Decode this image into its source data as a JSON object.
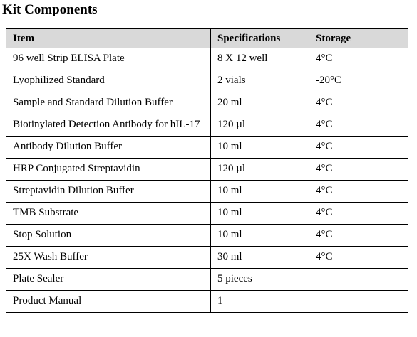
{
  "title": "Kit Components",
  "table": {
    "header": [
      "Item",
      "Specifications",
      "Storage"
    ],
    "rows": [
      [
        "96 well Strip ELISA Plate",
        "8 X 12 well",
        "4°C"
      ],
      [
        "Lyophilized Standard",
        "2 vials",
        "-20°C"
      ],
      [
        "Sample and Standard Dilution Buffer",
        "20 ml",
        "4°C"
      ],
      [
        "Biotinylated Detection Antibody for hIL-17",
        "120 µl",
        "4°C"
      ],
      [
        "Antibody Dilution Buffer",
        "10 ml",
        "4°C"
      ],
      [
        "HRP Conjugated Streptavidin",
        "120 µl",
        "4°C"
      ],
      [
        "Streptavidin Dilution Buffer",
        "10 ml",
        "4°C"
      ],
      [
        "TMB Substrate",
        "10 ml",
        "4°C"
      ],
      [
        "Stop Solution",
        "10 ml",
        "4°C"
      ],
      [
        "25X Wash Buffer",
        "30 ml",
        "4°C"
      ],
      [
        "Plate Sealer",
        "5 pieces"
      ],
      [
        "Product Manual",
        "1"
      ]
    ]
  }
}
